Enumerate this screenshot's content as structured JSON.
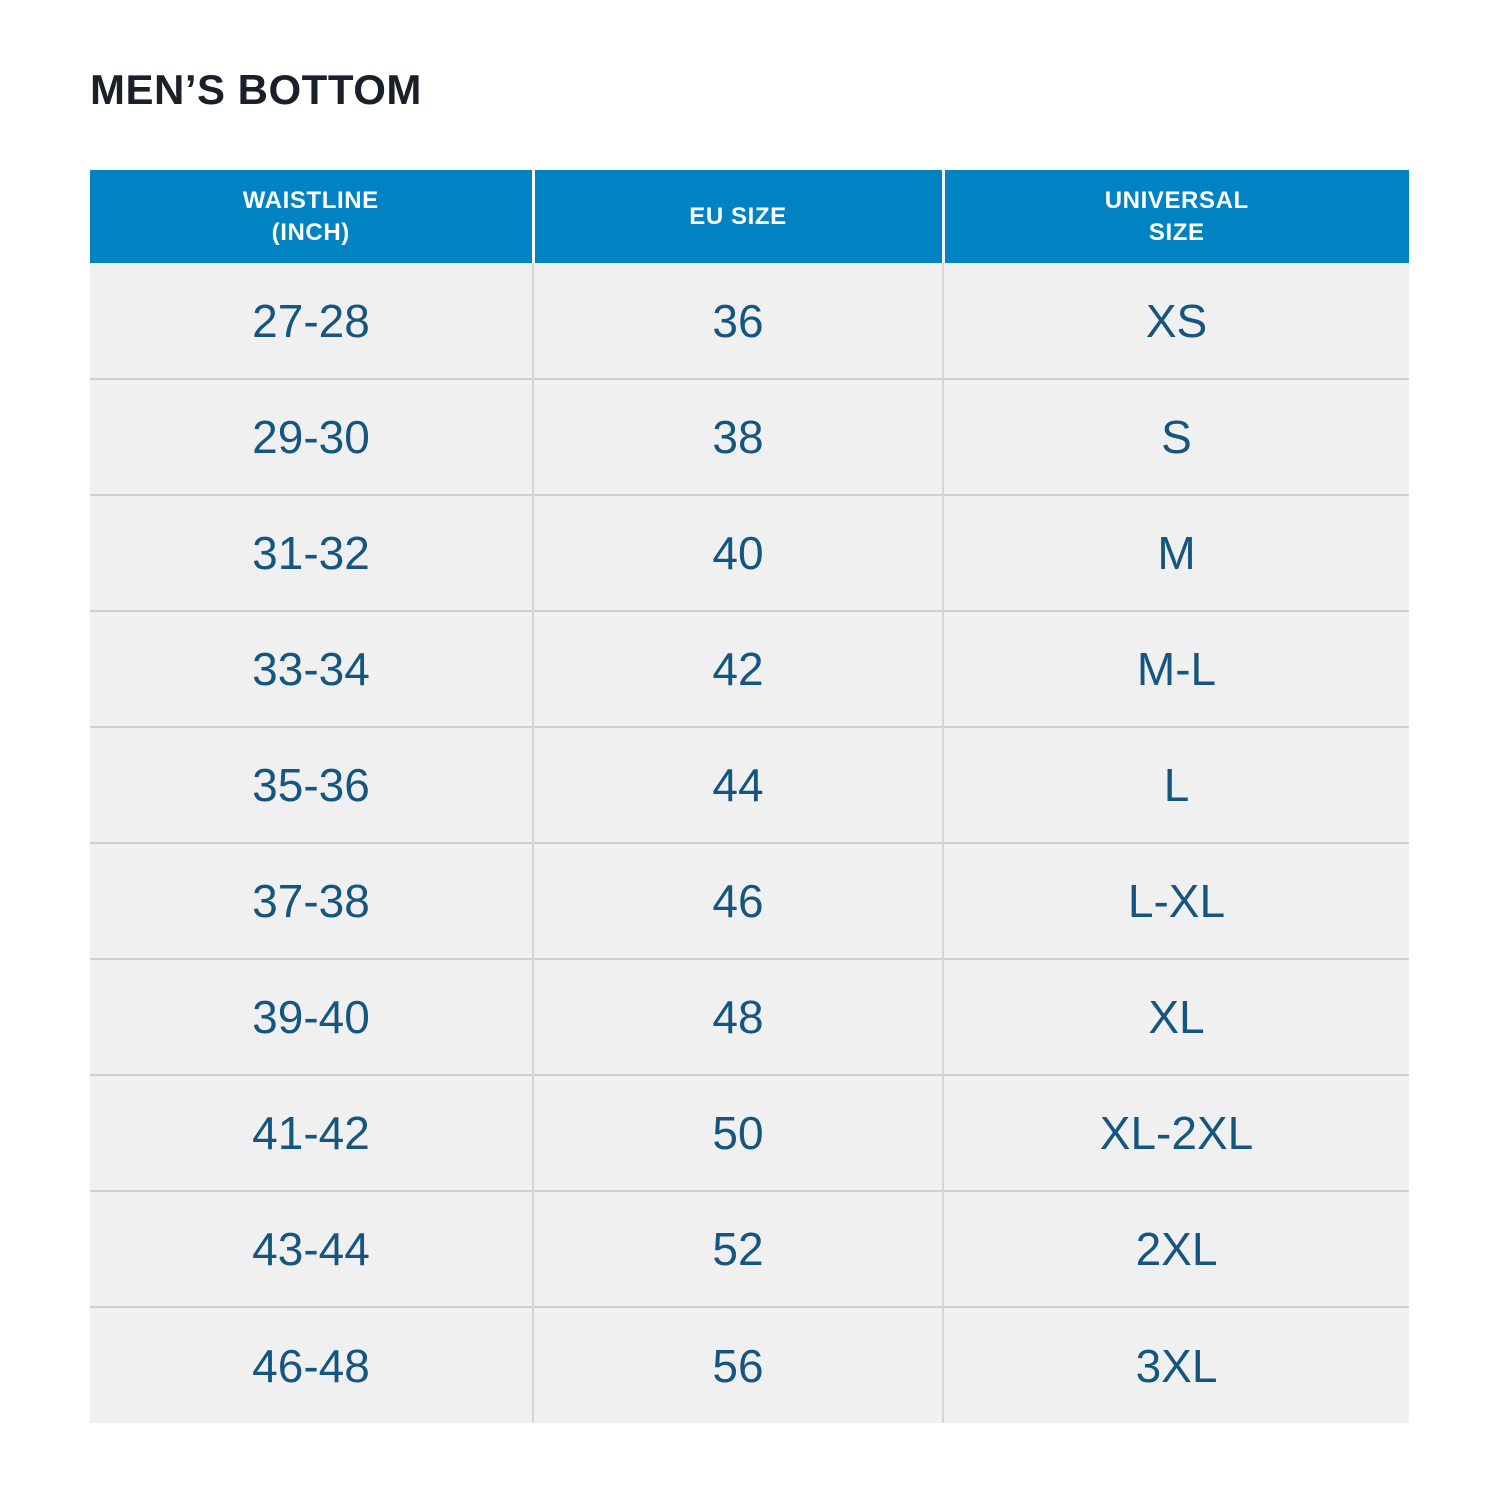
{
  "colors": {
    "page_bg": "#ffffff",
    "header_bg": "#0082c3",
    "header_text": "#ffffff",
    "row_bg": "#f0f0f0",
    "cell_text": "#14567f",
    "divider": "#d0d0d0",
    "title_text": "#1a2027"
  },
  "chart_data": {
    "type": "table",
    "title": "MEN’S BOTTOM",
    "columns": [
      "WAISTLINE\n(INCH)",
      "EU SIZE",
      "UNIVERSAL\nSIZE"
    ],
    "rows": [
      [
        "27-28",
        "36",
        "XS"
      ],
      [
        "29-30",
        "38",
        "S"
      ],
      [
        "31-32",
        "40",
        "M"
      ],
      [
        "33-34",
        "42",
        "M-L"
      ],
      [
        "35-36",
        "44",
        "L"
      ],
      [
        "37-38",
        "46",
        "L-XL"
      ],
      [
        "39-40",
        "48",
        "XL"
      ],
      [
        "41-42",
        "50",
        "XL-2XL"
      ],
      [
        "43-44",
        "52",
        "2XL"
      ],
      [
        "46-48",
        "56",
        "3XL"
      ]
    ]
  }
}
